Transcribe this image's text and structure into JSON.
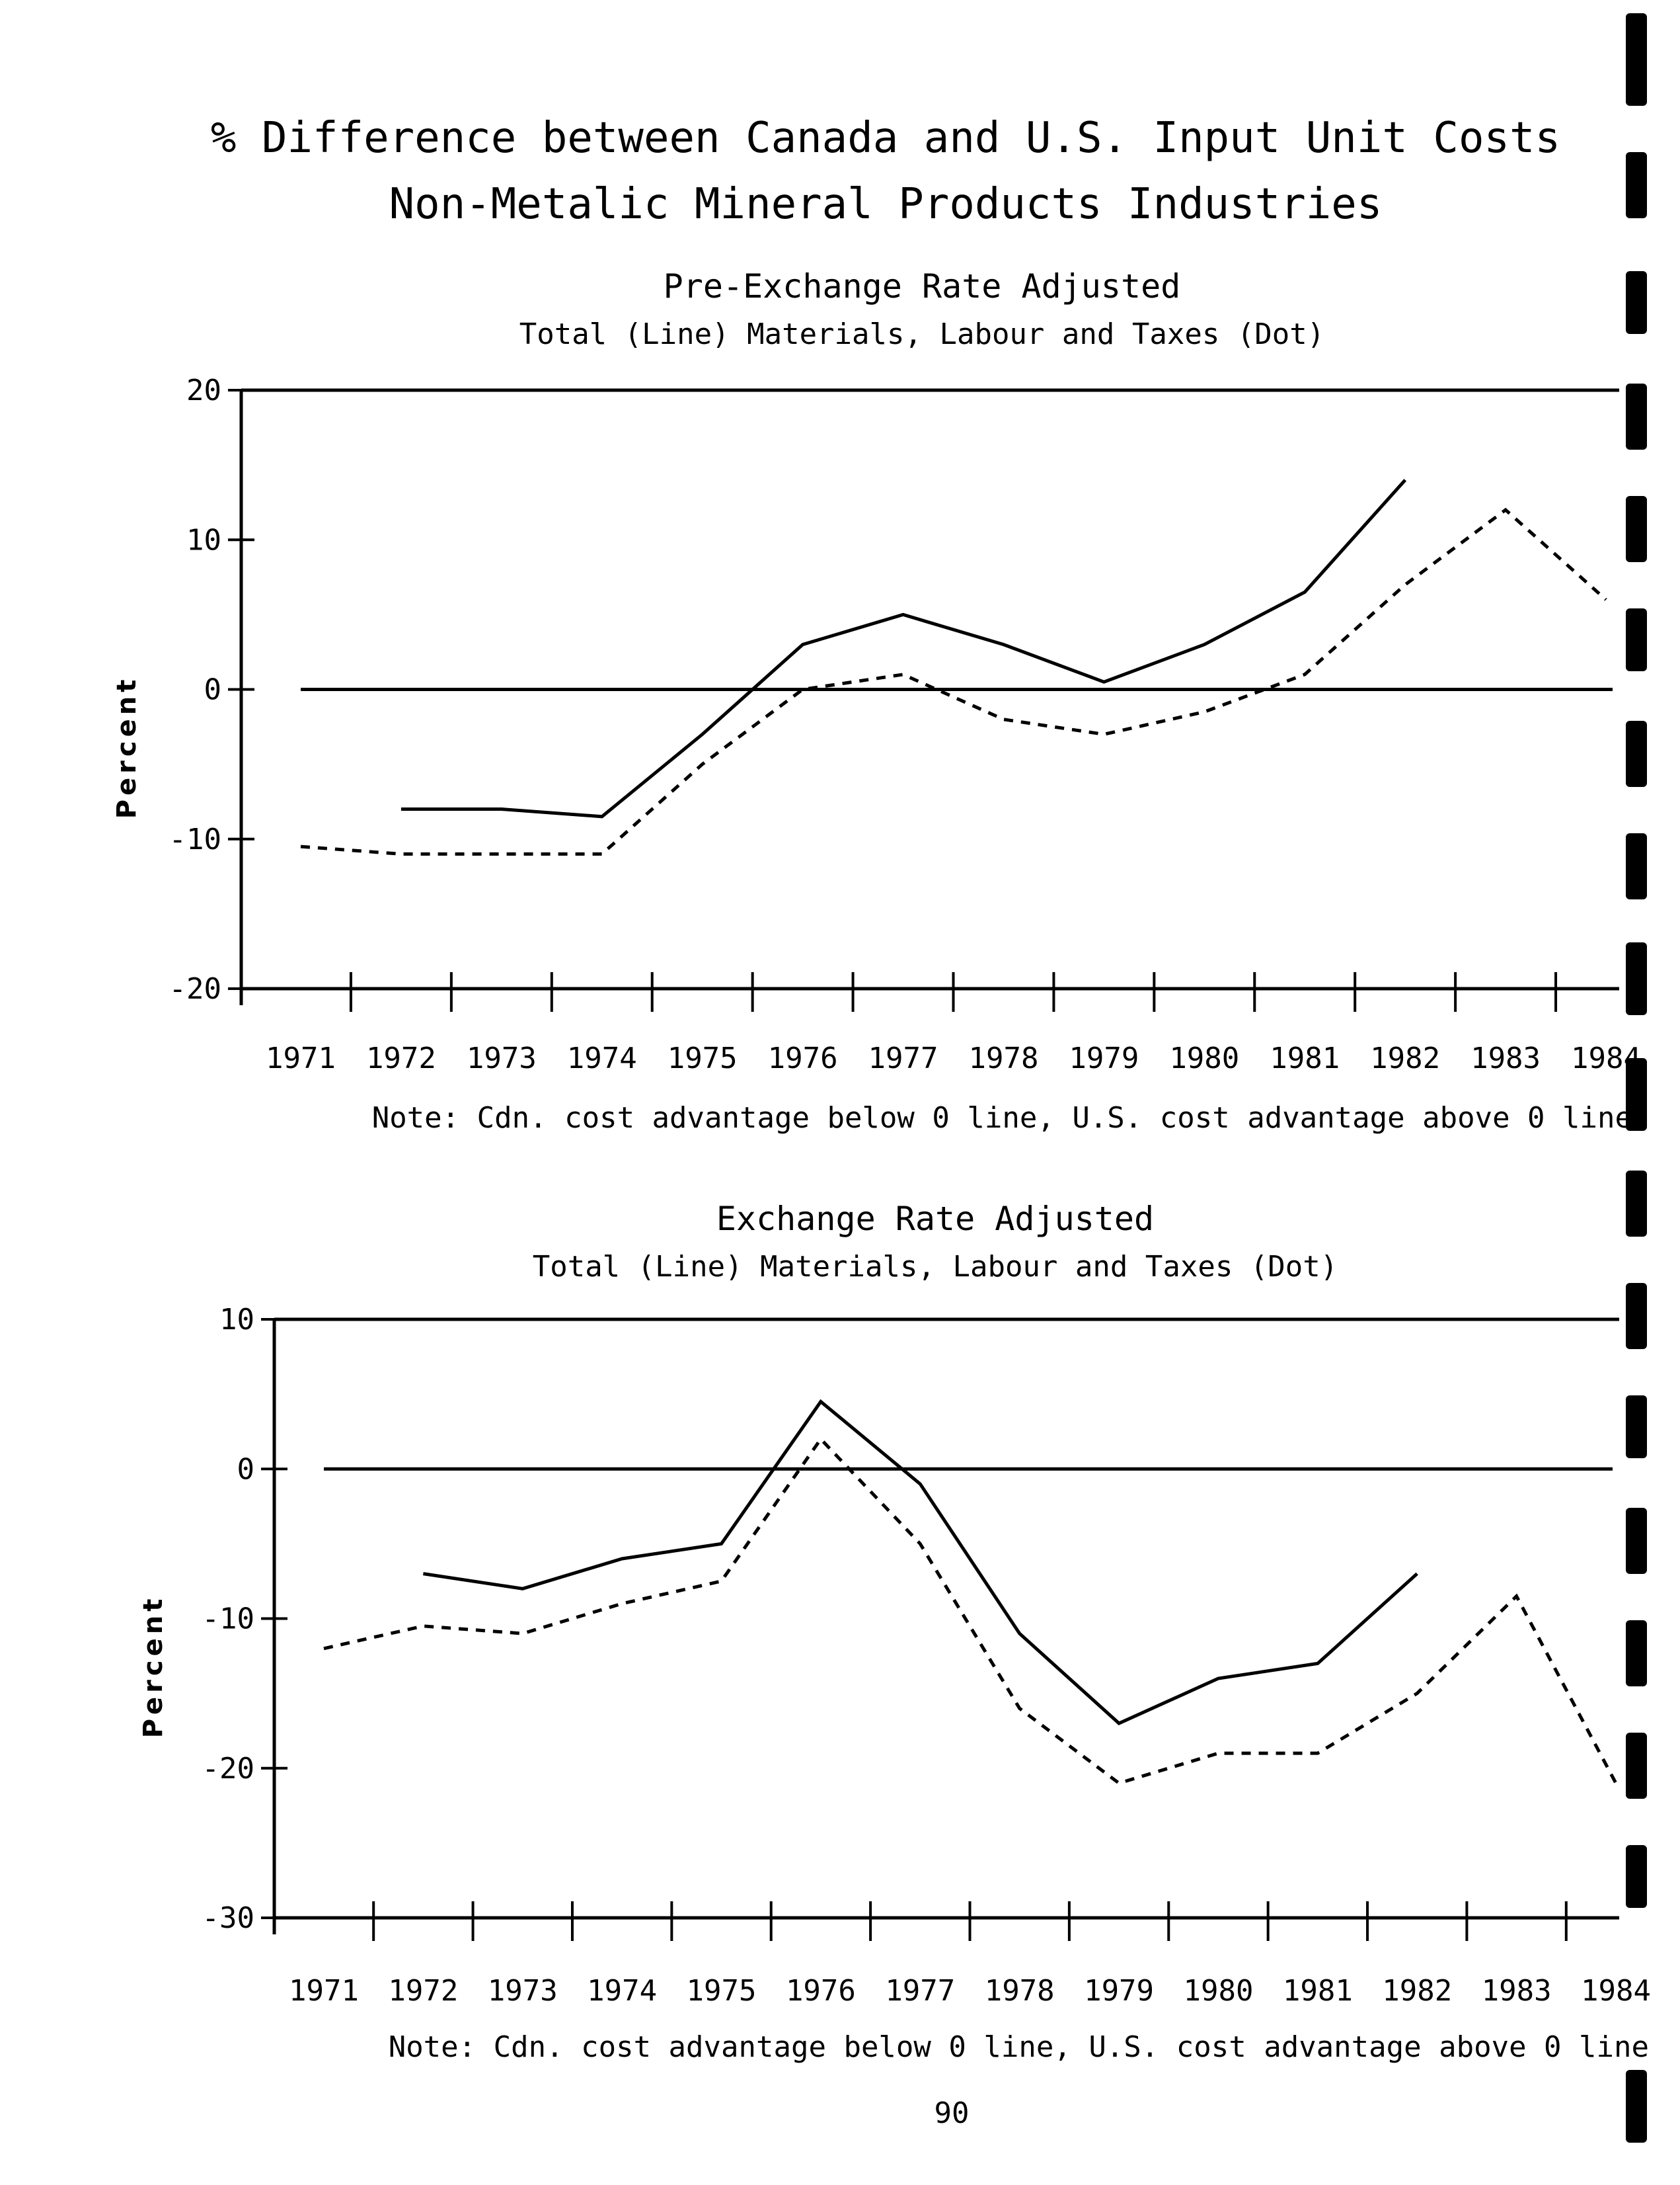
{
  "page": {
    "title_line1": "% Difference between Canada and U.S. Input Unit Costs",
    "title_line2": "Non-Metalic Mineral Products Industries",
    "page_number": "90"
  },
  "chart_data": [
    {
      "type": "line",
      "title": "Pre-Exchange Rate Adjusted",
      "subtitle": "Total (Line)   Materials, Labour and Taxes (Dot)",
      "ylabel": "Percent",
      "xlabel": "",
      "categories": [
        "1971",
        "1972",
        "1973",
        "1974",
        "1975",
        "1976",
        "1977",
        "1978",
        "1979",
        "1980",
        "1981",
        "1982",
        "1983",
        "1984"
      ],
      "ylim": [
        -20,
        20
      ],
      "yticks": [
        20,
        10,
        0,
        -10,
        -20
      ],
      "ytick_labels": [
        "20",
        "10",
        "0",
        "-10",
        "-20"
      ],
      "grid": false,
      "series": [
        {
          "style": "solid",
          "values": [
            null,
            -8,
            -8,
            -8.5,
            -3,
            3,
            5,
            3,
            0.5,
            3,
            6.5,
            14,
            null,
            null
          ]
        },
        {
          "style": "dotted",
          "values": [
            -10.5,
            -11,
            -11,
            -11,
            -5,
            0,
            1,
            -2,
            -3,
            -1.5,
            1,
            7,
            12,
            6
          ]
        }
      ],
      "note": "Note: Cdn. cost advantage below 0 line, U.S. cost advantage above 0 line"
    },
    {
      "type": "line",
      "title": "Exchange Rate Adjusted",
      "subtitle": "Total (Line)   Materials, Labour and Taxes (Dot)",
      "ylabel": "Percent",
      "xlabel": "",
      "categories": [
        "1971",
        "1972",
        "1973",
        "1974",
        "1975",
        "1976",
        "1977",
        "1978",
        "1979",
        "1980",
        "1981",
        "1982",
        "1983",
        "1984"
      ],
      "ylim": [
        -30,
        10
      ],
      "yticks": [
        10,
        0,
        -10,
        -20,
        -30
      ],
      "ytick_labels": [
        "10",
        "0",
        "-10",
        "-20",
        "-30"
      ],
      "grid": false,
      "series": [
        {
          "style": "solid",
          "values": [
            null,
            -7,
            -8,
            -6,
            -5,
            4.5,
            -1,
            -11,
            -17,
            -14,
            -13,
            -7,
            null,
            null
          ]
        },
        {
          "style": "dotted",
          "values": [
            -12,
            -10.5,
            -11,
            -9,
            -7.5,
            2,
            -5,
            -16,
            -21,
            -19,
            -19,
            -15,
            -8.5,
            -21
          ]
        }
      ],
      "note": "Note: Cdn. cost advantage below 0 line, U.S. cost advantage above 0 line"
    }
  ]
}
